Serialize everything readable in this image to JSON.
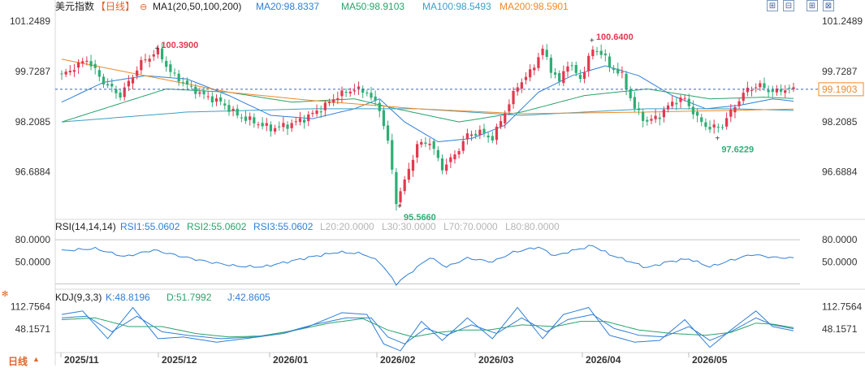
{
  "instrument": "美元指数",
  "period_button": "【日线】",
  "ma_indicator": {
    "name": "MA1(20,50,100,200)",
    "items": [
      {
        "label": "MA20:98.8337",
        "color": "#2f7fd6"
      },
      {
        "label": "MA50:98.9103",
        "color": "#2aa36b"
      },
      {
        "label": "MA100:98.5493",
        "color": "#3aa0c8"
      },
      {
        "label": "MA200:98.5901",
        "color": "#f08a2a"
      }
    ]
  },
  "rsi_indicator": {
    "name": "RSI(14,14,14)",
    "items": [
      {
        "label": "RSI1:55.0602",
        "color": "#2f7fd6"
      },
      {
        "label": "RSI2:55.0602",
        "color": "#2aa36b"
      },
      {
        "label": "RSI3:55.0602",
        "color": "#2f7fd6"
      },
      {
        "label": "L20:20.0000",
        "color": "#b5b5b5"
      },
      {
        "label": "L30:30.0000",
        "color": "#b5b5b5"
      },
      {
        "label": "L70:70.0000",
        "color": "#b5b5b5"
      },
      {
        "label": "L80:80.0000",
        "color": "#b5b5b5"
      }
    ]
  },
  "kdj_indicator": {
    "name": "KDJ(9,3,3)",
    "items": [
      {
        "label": "K:48.8196",
        "color": "#2f7fd6"
      },
      {
        "label": "D:51.7992",
        "color": "#2aa36b"
      },
      {
        "label": "J:42.8605",
        "color": "#2f7fd6"
      }
    ]
  },
  "toolbar_icons": [
    "grid-zoom-in-icon",
    "grid-zoom-out-icon",
    "grid-expand-icon",
    "grid-collapse-icon"
  ],
  "colors": {
    "up": "#e2394f",
    "down": "#2fae75",
    "grid": "#c9c9c9",
    "price_tag": "#f08a2a"
  },
  "chart_data": {
    "type": "candlestick",
    "price_axis": {
      "ticks": [
        "101.2489",
        "99.7287",
        "98.2085",
        "96.6884"
      ],
      "range": [
        95.3,
        101.5
      ]
    },
    "x_labels": [
      "2025/11",
      "2025/12",
      "2026/01",
      "2026/02",
      "2026/03",
      "2026/04",
      "2026/05"
    ],
    "current_price": "99.1903",
    "annotations": [
      {
        "text": "100.3900",
        "kind": "high",
        "value": 100.39
      },
      {
        "text": "95.5660",
        "kind": "low",
        "value": 95.566
      },
      {
        "text": "100.6400",
        "kind": "high",
        "value": 100.64
      },
      {
        "text": "97.6229",
        "kind": "low",
        "value": 97.6229
      }
    ],
    "close_path": [
      [
        0,
        99.6
      ],
      [
        6,
        100.1
      ],
      [
        10,
        99.4
      ],
      [
        14,
        99.0
      ],
      [
        19,
        100.0
      ],
      [
        23,
        100.35
      ],
      [
        26,
        99.7
      ],
      [
        30,
        99.3
      ],
      [
        34,
        99.0
      ],
      [
        38,
        98.8
      ],
      [
        42,
        98.4
      ],
      [
        46,
        98.2
      ],
      [
        50,
        98.0
      ],
      [
        54,
        98.1
      ],
      [
        58,
        98.3
      ],
      [
        62,
        98.6
      ],
      [
        66,
        99.0
      ],
      [
        70,
        99.2
      ],
      [
        73,
        99.1
      ],
      [
        76,
        98.6
      ],
      [
        78,
        97.6
      ],
      [
        80,
        95.8
      ],
      [
        82,
        96.4
      ],
      [
        85,
        97.5
      ],
      [
        88,
        97.6
      ],
      [
        91,
        96.8
      ],
      [
        94,
        97.2
      ],
      [
        97,
        97.8
      ],
      [
        100,
        97.9
      ],
      [
        103,
        97.7
      ],
      [
        106,
        98.5
      ],
      [
        109,
        99.3
      ],
      [
        112,
        99.7
      ],
      [
        115,
        100.4
      ],
      [
        117,
        99.8
      ],
      [
        119,
        99.4
      ],
      [
        121,
        100.0
      ],
      [
        124,
        99.5
      ],
      [
        127,
        100.4
      ],
      [
        129,
        100.3
      ],
      [
        131,
        99.9
      ],
      [
        134,
        99.6
      ],
      [
        137,
        98.6
      ],
      [
        140,
        98.2
      ],
      [
        143,
        98.4
      ],
      [
        146,
        98.8
      ],
      [
        149,
        98.9
      ],
      [
        152,
        98.3
      ],
      [
        155,
        98.0
      ],
      [
        158,
        98.1
      ],
      [
        161,
        98.7
      ],
      [
        164,
        99.2
      ],
      [
        167,
        99.3
      ],
      [
        170,
        99.1
      ],
      [
        173,
        99.2
      ],
      [
        175,
        99.19
      ]
    ],
    "ma_paths": {
      "MA20": [
        [
          0,
          98.8
        ],
        [
          10,
          99.4
        ],
        [
          20,
          99.6
        ],
        [
          30,
          99.5
        ],
        [
          40,
          99.0
        ],
        [
          50,
          98.4
        ],
        [
          60,
          98.3
        ],
        [
          70,
          98.6
        ],
        [
          76,
          98.9
        ],
        [
          82,
          98.2
        ],
        [
          90,
          97.6
        ],
        [
          98,
          97.7
        ],
        [
          106,
          98.1
        ],
        [
          114,
          99.1
        ],
        [
          122,
          99.6
        ],
        [
          130,
          99.9
        ],
        [
          138,
          99.6
        ],
        [
          146,
          99.0
        ],
        [
          154,
          98.6
        ],
        [
          162,
          98.7
        ],
        [
          170,
          98.9
        ],
        [
          175,
          98.83
        ]
      ],
      "MA50": [
        [
          0,
          98.2
        ],
        [
          15,
          98.8
        ],
        [
          25,
          99.2
        ],
        [
          40,
          99.1
        ],
        [
          55,
          98.8
        ],
        [
          70,
          98.9
        ],
        [
          80,
          98.6
        ],
        [
          95,
          98.2
        ],
        [
          110,
          98.5
        ],
        [
          125,
          99.0
        ],
        [
          140,
          99.2
        ],
        [
          155,
          98.9
        ],
        [
          168,
          98.95
        ],
        [
          175,
          98.91
        ]
      ],
      "MA100": [
        [
          0,
          98.2
        ],
        [
          30,
          98.5
        ],
        [
          60,
          98.6
        ],
        [
          85,
          98.6
        ],
        [
          110,
          98.4
        ],
        [
          140,
          98.6
        ],
        [
          160,
          98.6
        ],
        [
          175,
          98.55
        ]
      ],
      "MA200": [
        [
          0,
          100.1
        ],
        [
          20,
          99.6
        ],
        [
          40,
          99.1
        ],
        [
          60,
          98.85
        ],
        [
          85,
          98.6
        ],
        [
          110,
          98.45
        ],
        [
          140,
          98.5
        ],
        [
          160,
          98.55
        ],
        [
          175,
          98.59
        ]
      ]
    },
    "rsi": {
      "ticks": [
        "80.0000",
        "50.0000"
      ],
      "range": [
        15,
        90
      ],
      "levels": [
        20,
        30,
        70,
        80
      ],
      "values": [
        [
          0,
          65
        ],
        [
          8,
          68
        ],
        [
          15,
          57
        ],
        [
          22,
          66
        ],
        [
          28,
          58
        ],
        [
          35,
          50
        ],
        [
          42,
          44
        ],
        [
          48,
          43
        ],
        [
          54,
          50
        ],
        [
          60,
          57
        ],
        [
          66,
          63
        ],
        [
          72,
          61
        ],
        [
          76,
          50
        ],
        [
          80,
          20
        ],
        [
          84,
          38
        ],
        [
          88,
          56
        ],
        [
          92,
          43
        ],
        [
          97,
          55
        ],
        [
          103,
          50
        ],
        [
          108,
          63
        ],
        [
          114,
          70
        ],
        [
          118,
          58
        ],
        [
          122,
          65
        ],
        [
          127,
          72
        ],
        [
          131,
          60
        ],
        [
          136,
          50
        ],
        [
          140,
          42
        ],
        [
          145,
          50
        ],
        [
          150,
          54
        ],
        [
          155,
          43
        ],
        [
          160,
          52
        ],
        [
          165,
          60
        ],
        [
          170,
          56
        ],
        [
          175,
          55.06
        ]
      ]
    },
    "kdj": {
      "ticks": [
        "112.7564",
        "48.1571"
      ],
      "range": [
        -20,
        130
      ],
      "K": [
        [
          0,
          80
        ],
        [
          6,
          85
        ],
        [
          12,
          40
        ],
        [
          18,
          85
        ],
        [
          24,
          40
        ],
        [
          30,
          30
        ],
        [
          38,
          20
        ],
        [
          46,
          25
        ],
        [
          54,
          40
        ],
        [
          60,
          60
        ],
        [
          68,
          80
        ],
        [
          74,
          80
        ],
        [
          78,
          25
        ],
        [
          82,
          5
        ],
        [
          87,
          50
        ],
        [
          92,
          30
        ],
        [
          98,
          60
        ],
        [
          104,
          35
        ],
        [
          110,
          80
        ],
        [
          116,
          40
        ],
        [
          121,
          75
        ],
        [
          127,
          90
        ],
        [
          132,
          50
        ],
        [
          138,
          30
        ],
        [
          144,
          25
        ],
        [
          150,
          55
        ],
        [
          155,
          15
        ],
        [
          160,
          40
        ],
        [
          166,
          80
        ],
        [
          170,
          60
        ],
        [
          175,
          48.82
        ]
      ],
      "D": [
        [
          0,
          75
        ],
        [
          8,
          80
        ],
        [
          16,
          55
        ],
        [
          24,
          55
        ],
        [
          32,
          35
        ],
        [
          40,
          25
        ],
        [
          48,
          28
        ],
        [
          56,
          45
        ],
        [
          64,
          65
        ],
        [
          72,
          78
        ],
        [
          78,
          45
        ],
        [
          84,
          25
        ],
        [
          90,
          38
        ],
        [
          96,
          45
        ],
        [
          102,
          45
        ],
        [
          110,
          60
        ],
        [
          118,
          55
        ],
        [
          124,
          70
        ],
        [
          130,
          70
        ],
        [
          138,
          45
        ],
        [
          146,
          35
        ],
        [
          154,
          30
        ],
        [
          160,
          38
        ],
        [
          166,
          65
        ],
        [
          170,
          62
        ],
        [
          175,
          51.8
        ]
      ],
      "J": [
        [
          0,
          90
        ],
        [
          5,
          100
        ],
        [
          11,
          20
        ],
        [
          17,
          110
        ],
        [
          23,
          20
        ],
        [
          29,
          25
        ],
        [
          37,
          10
        ],
        [
          45,
          22
        ],
        [
          53,
          35
        ],
        [
          59,
          55
        ],
        [
          67,
          95
        ],
        [
          73,
          90
        ],
        [
          77,
          5
        ],
        [
          81,
          -15
        ],
        [
          86,
          70
        ],
        [
          91,
          15
        ],
        [
          97,
          80
        ],
        [
          103,
          20
        ],
        [
          109,
          110
        ],
        [
          115,
          20
        ],
        [
          120,
          90
        ],
        [
          126,
          110
        ],
        [
          131,
          30
        ],
        [
          137,
          10
        ],
        [
          143,
          15
        ],
        [
          149,
          75
        ],
        [
          155,
          -5
        ],
        [
          160,
          45
        ],
        [
          166,
          100
        ],
        [
          170,
          55
        ],
        [
          175,
          42.86
        ]
      ]
    }
  },
  "period_label": "日线"
}
